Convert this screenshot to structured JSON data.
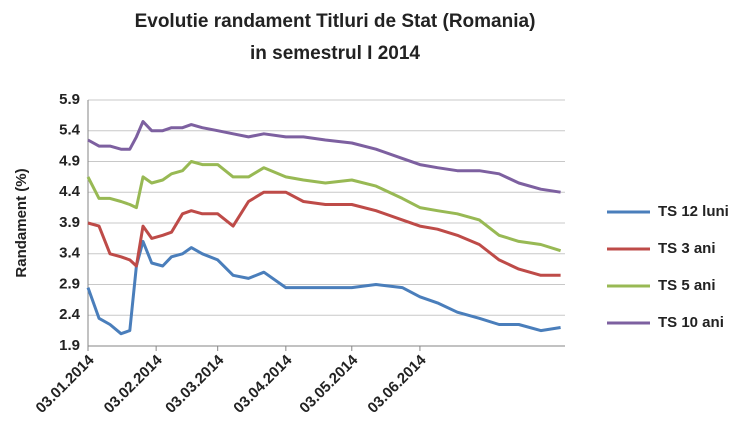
{
  "chart_data": {
    "type": "line",
    "title": [
      "Evolutie randament Titluri de Stat (Romania)",
      "in semestrul I 2014"
    ],
    "y_label": "Randament (%)",
    "x": [
      "03.01.2014",
      "08.01.2014",
      "13.01.2014",
      "18.01.2014",
      "22.01.2014",
      "25.01.2014",
      "28.01.2014",
      "01.02.2014",
      "06.02.2014",
      "10.02.2014",
      "15.02.2014",
      "19.02.2014",
      "24.02.2014",
      "03.03.2014",
      "10.03.2014",
      "17.03.2014",
      "24.03.2014",
      "03.04.2014",
      "11.04.2014",
      "21.04.2014",
      "03.05.2014",
      "14.05.2014",
      "26.05.2014",
      "03.06.2014",
      "11.06.2014",
      "20.06.2014",
      "30.06.2014",
      "09.07.2014",
      "18.07.2014",
      "28.07.2014",
      "06.08.2014"
    ],
    "series": [
      {
        "name": "TS 12 luni",
        "color": "#4a7ebb",
        "values": [
          2.85,
          2.35,
          2.25,
          2.1,
          2.15,
          3.2,
          3.6,
          3.25,
          3.2,
          3.35,
          3.4,
          3.5,
          3.4,
          3.3,
          3.05,
          3.0,
          3.1,
          2.85,
          2.85,
          2.85,
          2.85,
          2.9,
          2.85,
          2.7,
          2.6,
          2.45,
          2.35,
          2.25,
          2.25,
          2.15,
          2.2
        ]
      },
      {
        "name": "TS 3 ani",
        "color": "#be4b48",
        "values": [
          3.9,
          3.85,
          3.4,
          3.35,
          3.3,
          3.2,
          3.85,
          3.65,
          3.7,
          3.75,
          4.05,
          4.1,
          4.05,
          4.05,
          3.85,
          4.25,
          4.4,
          4.4,
          4.25,
          4.2,
          4.2,
          4.1,
          3.95,
          3.85,
          3.8,
          3.7,
          3.55,
          3.3,
          3.15,
          3.05,
          3.05
        ]
      },
      {
        "name": "TS 5 ani",
        "color": "#98b954",
        "values": [
          4.65,
          4.3,
          4.3,
          4.25,
          4.2,
          4.15,
          4.65,
          4.55,
          4.6,
          4.7,
          4.75,
          4.9,
          4.85,
          4.85,
          4.65,
          4.65,
          4.8,
          4.65,
          4.6,
          4.55,
          4.6,
          4.5,
          4.3,
          4.15,
          4.1,
          4.05,
          3.95,
          3.7,
          3.6,
          3.55,
          3.45
        ]
      },
      {
        "name": "TS 10 ani",
        "color": "#7d60a0",
        "values": [
          5.25,
          5.15,
          5.15,
          5.1,
          5.1,
          5.3,
          5.55,
          5.4,
          5.4,
          5.45,
          5.45,
          5.5,
          5.45,
          5.4,
          5.35,
          5.3,
          5.35,
          5.3,
          5.3,
          5.25,
          5.2,
          5.1,
          4.95,
          4.85,
          4.8,
          4.75,
          4.75,
          4.7,
          4.55,
          4.45,
          4.4
        ]
      }
    ],
    "xlim": [
      "03.01.2014",
      "08.08.2014"
    ],
    "xticks": [
      "03.01.2014",
      "03.02.2014",
      "03.03.2014",
      "03.04.2014",
      "03.05.2014",
      "03.06.2014"
    ],
    "ylim": [
      1.9,
      5.9
    ],
    "yticks": [
      1.9,
      2.4,
      2.9,
      3.4,
      3.9,
      4.4,
      4.9,
      5.4,
      5.9
    ],
    "grid": true,
    "legend": "right"
  }
}
